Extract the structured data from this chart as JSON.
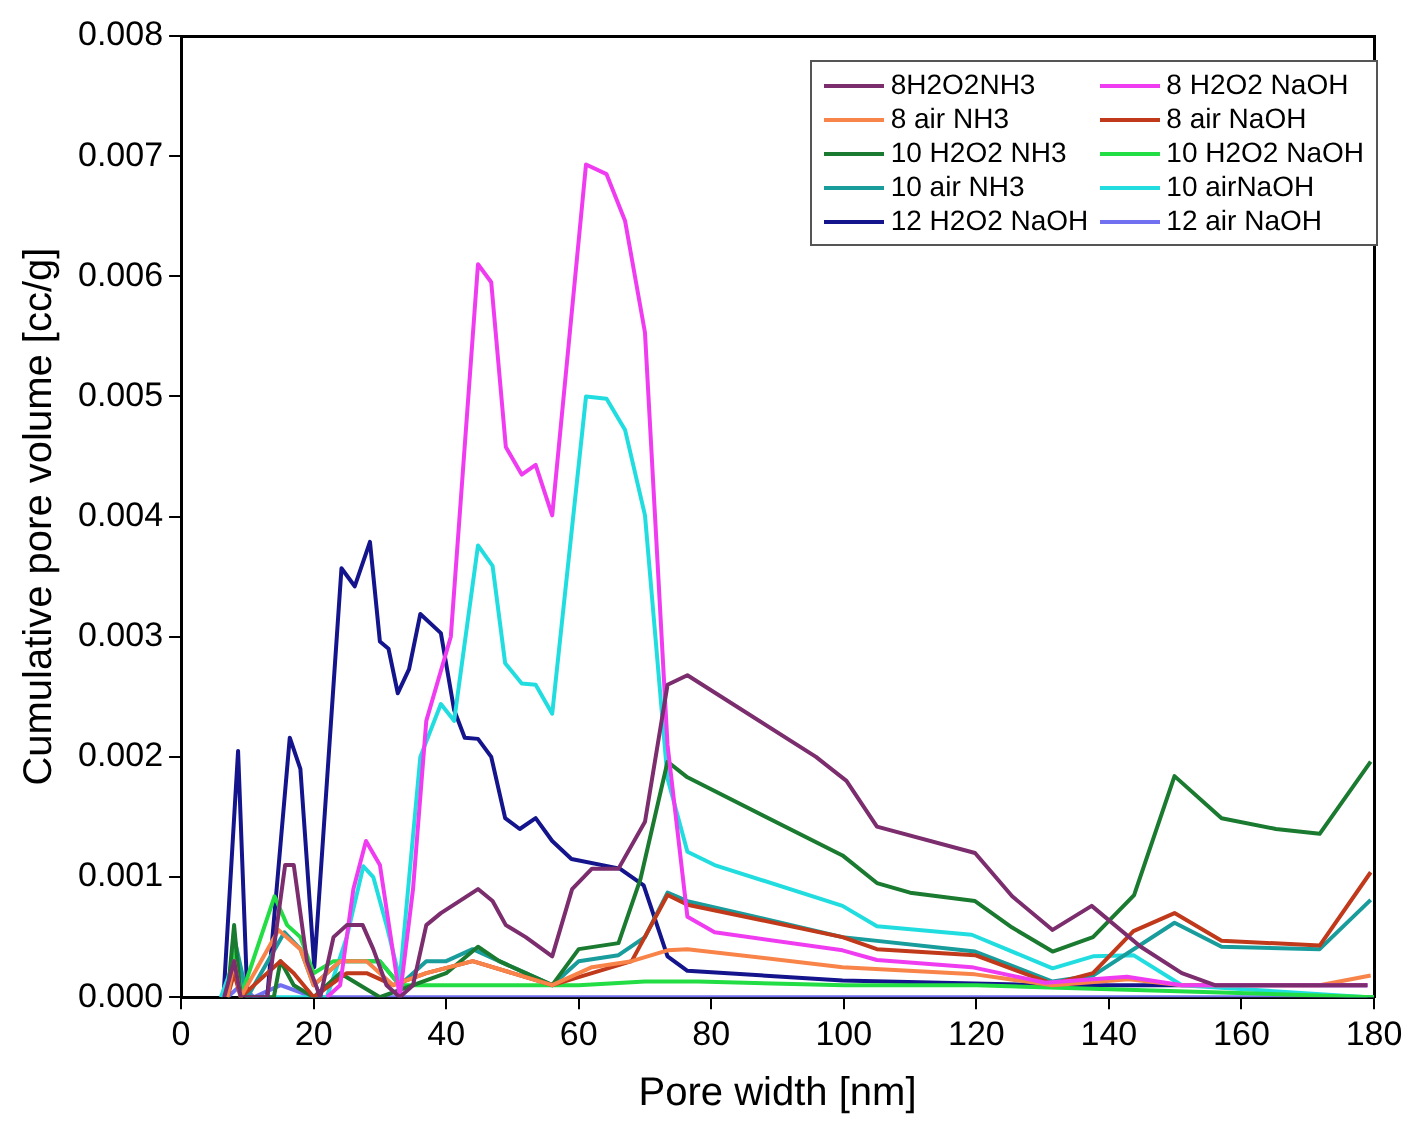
{
  "chart_data": {
    "type": "line",
    "xlabel": "Pore width [nm]",
    "ylabel": "Cumulative pore volume [cc/g]",
    "xlim": [
      0,
      180
    ],
    "ylim": [
      0,
      0.008
    ],
    "xticks": [
      0,
      20,
      40,
      60,
      80,
      100,
      120,
      140,
      160,
      180
    ],
    "yticks": [
      {
        "value": 0,
        "label": "0.000"
      },
      {
        "value": 0.001,
        "label": "0.001"
      },
      {
        "value": 0.002,
        "label": "0.002"
      },
      {
        "value": 0.003,
        "label": "0.003"
      },
      {
        "value": 0.004,
        "label": "0.004"
      },
      {
        "value": 0.005,
        "label": "0.005"
      },
      {
        "value": 0.006,
        "label": "0.006"
      },
      {
        "value": 0.007,
        "label": "0.007"
      },
      {
        "value": 0.008,
        "label": "0.008"
      }
    ],
    "grid": false,
    "legend": "top right",
    "marker": "none",
    "line_style": "solid",
    "series": [
      {
        "name": "8H2O2NH3",
        "color": "#7b2d6e",
        "x": [
          6.5,
          8,
          9,
          13,
          15.7,
          17,
          19,
          21,
          23,
          25,
          27.4,
          29,
          31,
          33,
          35,
          37,
          39.2,
          44.8,
          47,
          49,
          52,
          56,
          59,
          62,
          66,
          70,
          73.4,
          76.4,
          95.8,
          100.4,
          105,
          119.8,
          125.4,
          131.5,
          137.4,
          144.8,
          151,
          156,
          179
        ],
        "values": [
          0,
          0.0003,
          0,
          0,
          0.0011,
          0.0011,
          0.0003,
          0,
          0.0005,
          0.0006,
          0.0006,
          0.0004,
          0.0001,
          0,
          0.0001,
          0.0006,
          0.0007,
          0.0009,
          0.0008,
          0.0006,
          0.0005,
          0.00034,
          0.0009,
          0.00107,
          0.00107,
          0.00146,
          0.0026,
          0.00268,
          0.002,
          0.0018,
          0.00142,
          0.0012,
          0.00084,
          0.00056,
          0.00076,
          0.00042,
          0.0002,
          0.0001,
          0.0001
        ]
      },
      {
        "name": "8 H2O2 NaOH",
        "color": "#f03cf0",
        "x": [
          22,
          24,
          26,
          27.9,
          30,
          33,
          35,
          37,
          40.7,
          44.8,
          46.8,
          49,
          51.4,
          53.5,
          56,
          61.1,
          64.2,
          67,
          70,
          73.4,
          76.4,
          80.5,
          99.8,
          105,
          119.3,
          130.4,
          142.7,
          151,
          179
        ],
        "values": [
          0,
          0.0001,
          0.0009,
          0.0013,
          0.0011,
          0,
          0.0009,
          0.0023,
          0.003,
          0.0061,
          0.00595,
          0.00458,
          0.00435,
          0.00443,
          0.00401,
          0.00693,
          0.00685,
          0.00646,
          0.00553,
          0.0021,
          0.00067,
          0.00054,
          0.00039,
          0.00031,
          0.00025,
          0.00012,
          0.00017,
          0.0001,
          0.0001
        ]
      },
      {
        "name": "8 air NH3",
        "color": "#f8844a",
        "x": [
          7,
          8,
          9,
          14.7,
          18,
          20,
          24,
          28,
          32,
          37,
          44,
          50,
          56,
          62,
          68,
          73.4,
          76.4,
          99.8,
          119.8,
          131.5,
          143,
          151,
          171.8,
          179.5
        ],
        "values": [
          0,
          0.0003,
          0,
          0.00056,
          0.0004,
          0.0001,
          0.0003,
          0.0003,
          0.0001,
          0.0002,
          0.0003,
          0.0002,
          0.0001,
          0.00025,
          0.0003,
          0.00039,
          0.0004,
          0.00025,
          0.00019,
          0.0001,
          0.00015,
          0.0001,
          0.0001,
          0.00018
        ]
      },
      {
        "name": "8 air NaOH",
        "color": "#c0391b",
        "x": [
          7,
          8,
          9,
          15,
          17,
          20,
          25,
          28,
          32,
          37,
          44,
          50,
          56,
          62,
          68,
          73.4,
          76.4,
          99.8,
          105,
          119.8,
          131.5,
          137.6,
          143.7,
          149.9,
          157,
          171.8,
          179.5
        ],
        "values": [
          0,
          0.0002,
          0,
          0.0003,
          0.0002,
          0,
          0.0002,
          0.0002,
          0.0001,
          0.0002,
          0.0003,
          0.0002,
          0.0001,
          0.0002,
          0.0003,
          0.00085,
          0.00077,
          0.0005,
          0.0004,
          0.00035,
          0.00011,
          0.0002,
          0.00055,
          0.0007,
          0.00047,
          0.00043,
          0.00104
        ]
      },
      {
        "name": "10 H2O2 NH3",
        "color": "#1a7a30",
        "x": [
          7,
          8,
          9,
          14,
          15,
          17,
          20,
          24,
          27,
          30,
          35,
          40,
          44.8,
          48,
          52,
          56,
          60,
          66,
          69.3,
          73.4,
          76.4,
          99.8,
          105,
          110,
          119.8,
          125.4,
          131.5,
          137.6,
          143.8,
          149.9,
          157,
          165.2,
          171.8,
          179.5
        ],
        "values": [
          0,
          0.0006,
          0,
          0,
          0.0003,
          0.0001,
          0,
          0.0002,
          0.0001,
          0,
          0.0001,
          0.0002,
          0.00042,
          0.0003,
          0.0002,
          0.0001,
          0.0004,
          0.00045,
          0.00098,
          0.00196,
          0.00183,
          0.00118,
          0.00095,
          0.00087,
          0.0008,
          0.00058,
          0.00038,
          0.0005,
          0.00085,
          0.00184,
          0.00149,
          0.0014,
          0.00136,
          0.00196
        ]
      },
      {
        "name": "10 H2O2 NaOH",
        "color": "#22dd44",
        "x": [
          7,
          8,
          9,
          14.1,
          16,
          18,
          20,
          23,
          27,
          30,
          33,
          40,
          50,
          60,
          70,
          78,
          100,
          120,
          180
        ],
        "values": [
          0,
          0.0004,
          0,
          0.00084,
          0.0006,
          0.0005,
          0.0002,
          0.0003,
          0.0003,
          0.0003,
          0.0001,
          0.0001,
          0.0001,
          0.0001,
          0.00013,
          0.00013,
          0.0001,
          0.0001,
          0
        ]
      },
      {
        "name": "10 air NH3",
        "color": "#189c9c",
        "x": [
          7,
          8,
          10,
          15.6,
          18,
          20,
          24,
          27,
          30,
          33,
          37,
          40,
          44,
          48,
          52,
          56,
          60,
          66,
          70,
          73.4,
          76.4,
          99.8,
          119.8,
          131.5,
          137.6,
          149.9,
          157,
          171.8,
          179.5
        ],
        "values": [
          0,
          0.0005,
          0,
          0.00054,
          0.0004,
          0.0001,
          0.0003,
          0.0003,
          0.0003,
          0.0001,
          0.0003,
          0.0003,
          0.0004,
          0.0003,
          0.0002,
          0.0001,
          0.0003,
          0.00035,
          0.0005,
          0.00087,
          0.0008,
          0.0005,
          0.00038,
          0.00013,
          0.00018,
          0.00062,
          0.00042,
          0.0004,
          0.00081
        ]
      },
      {
        "name": "10 airNaOH",
        "color": "#22dde0",
        "x": [
          6,
          8,
          10,
          22,
          25,
          27.5,
          29,
          31,
          33,
          36.1,
          39.2,
          41.2,
          44.8,
          47,
          48.9,
          51.4,
          53.5,
          56,
          61.1,
          64.2,
          67,
          70,
          73.4,
          76.4,
          80.5,
          99.8,
          105,
          119.3,
          131.5,
          137.6,
          143.7,
          151,
          179
        ],
        "values": [
          0,
          0.0003,
          0,
          0,
          0.0005,
          0.00109,
          0.001,
          0.0006,
          0.00015,
          0.002,
          0.00244,
          0.0023,
          0.00376,
          0.00359,
          0.00278,
          0.00261,
          0.0026,
          0.00236,
          0.005,
          0.00498,
          0.00472,
          0.00401,
          0.00182,
          0.00121,
          0.0011,
          0.00076,
          0.00059,
          0.00052,
          0.00024,
          0.00034,
          0.00035,
          0.0001,
          0
        ]
      },
      {
        "name": "12 H2O2 NaOH",
        "color": "#14148c",
        "x": [
          6.4,
          8.6,
          10,
          13,
          16.4,
          18,
          20.1,
          24.2,
          26.2,
          28.5,
          30,
          31.3,
          32.7,
          34.4,
          36.1,
          39.2,
          41.2,
          42.8,
          44.8,
          46.8,
          48.9,
          51.1,
          53.5,
          56,
          58.9,
          66.2,
          69.8,
          73.4,
          76.4,
          99.8,
          130,
          179
        ],
        "values": [
          0,
          0.00205,
          0,
          0,
          0.00216,
          0.0019,
          0.00025,
          0.00357,
          0.00342,
          0.00379,
          0.00296,
          0.0029,
          0.00253,
          0.00273,
          0.00319,
          0.00303,
          0.00239,
          0.00216,
          0.00215,
          0.002,
          0.00149,
          0.0014,
          0.00149,
          0.0013,
          0.00115,
          0.00107,
          0.00093,
          0.00034,
          0.00022,
          0.00014,
          0.0001,
          0.0001
        ]
      },
      {
        "name": "12 air NaOH",
        "color": "#7070f0",
        "x": [
          7,
          9,
          11,
          15,
          20,
          30,
          35,
          60,
          100,
          130,
          150,
          180
        ],
        "values": [
          0,
          0.0001,
          0,
          0.0001,
          0,
          0,
          0,
          0,
          0,
          0,
          0,
          0
        ]
      }
    ]
  }
}
